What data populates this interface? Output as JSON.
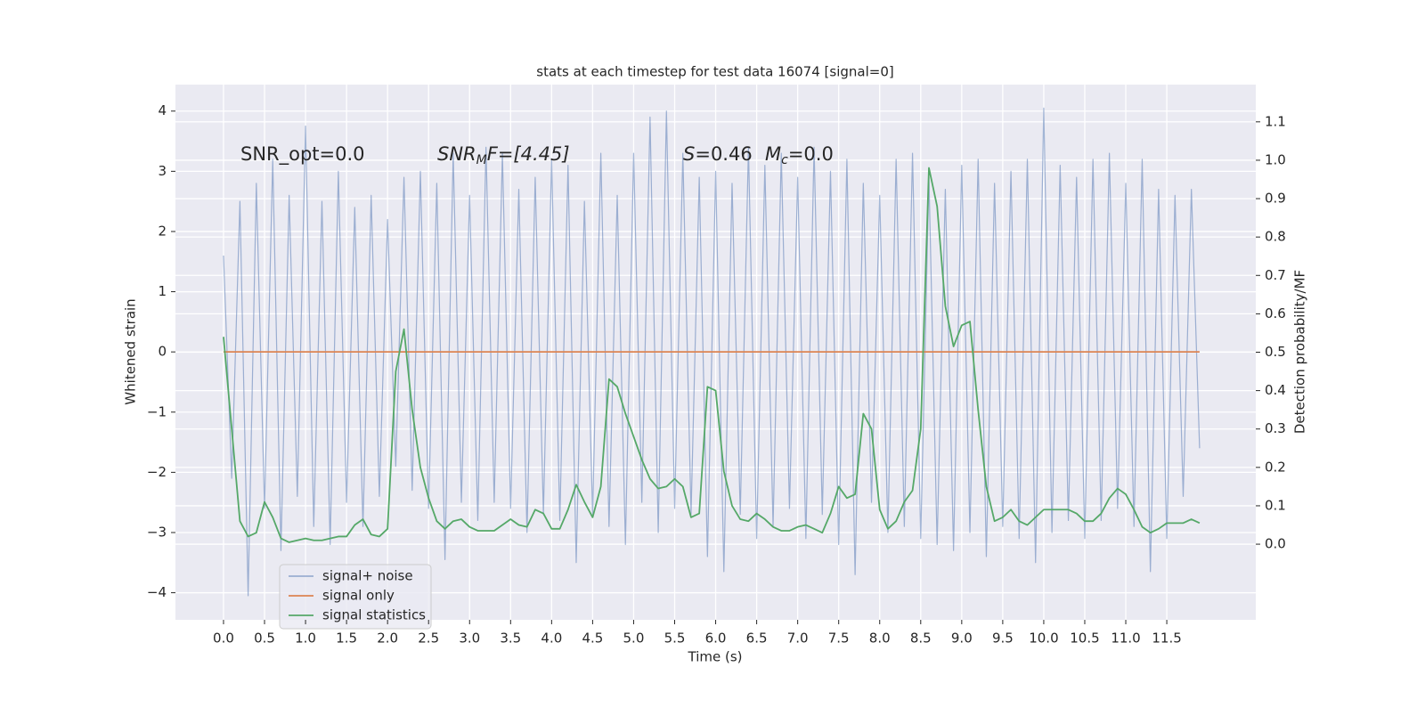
{
  "chart_data": {
    "type": "line",
    "title": "stats at each timestep for test data 16074 [signal=0]",
    "xlabel": "Time (s)",
    "ylabel": "Whitened strain",
    "y2label": "Detection probability/MF",
    "annotations": [
      [
        "SNR_opt=0.0"
      ],
      [
        "SNR",
        "M",
        "F=[4.45]"
      ],
      [
        "S",
        "=0.46"
      ],
      [
        "M",
        "c",
        "=0.0"
      ]
    ],
    "x": [
      0,
      0.1,
      0.2,
      0.3,
      0.4,
      0.5,
      0.6,
      0.7,
      0.8,
      0.9,
      1,
      1.1,
      1.2,
      1.3,
      1.4,
      1.5,
      1.6,
      1.7,
      1.8,
      1.9,
      2,
      2.1,
      2.2,
      2.3,
      2.4,
      2.5,
      2.6,
      2.7,
      2.8,
      2.9,
      3,
      3.1,
      3.2,
      3.3,
      3.4,
      3.5,
      3.6,
      3.7,
      3.8,
      3.9,
      4,
      4.1,
      4.2,
      4.3,
      4.4,
      4.5,
      4.6,
      4.7,
      4.8,
      4.9,
      5,
      5.1,
      5.2,
      5.3,
      5.4,
      5.5,
      5.6,
      5.7,
      5.8,
      5.9,
      6,
      6.1,
      6.2,
      6.3,
      6.4,
      6.5,
      6.6,
      6.7,
      6.8,
      6.9,
      7,
      7.1,
      7.2,
      7.3,
      7.4,
      7.5,
      7.6,
      7.7,
      7.8,
      7.9,
      8,
      8.1,
      8.2,
      8.3,
      8.4,
      8.5,
      8.6,
      8.7,
      8.8,
      8.9,
      9,
      9.1,
      9.2,
      9.3,
      9.4,
      9.5,
      9.6,
      9.7,
      9.8,
      9.9,
      10,
      10.1,
      10.2,
      10.3,
      10.4,
      10.5,
      10.6,
      10.7,
      10.8,
      10.9,
      11,
      11.1,
      11.2,
      11.3,
      11.4,
      11.5,
      11.6,
      11.7,
      11.8,
      11.9
    ],
    "series": [
      {
        "name": "signal+ noise",
        "color": "#4c72b0",
        "values": [
          1.6,
          -2.1,
          2.5,
          -4.05,
          2.8,
          -2.6,
          3.2,
          -3.3,
          2.6,
          -2.4,
          3.75,
          -2.9,
          2.5,
          -3.2,
          3.0,
          -2.5,
          2.4,
          -2.9,
          2.6,
          -2.4,
          2.2,
          -1.9,
          2.9,
          -2.3,
          3.0,
          -2.6,
          2.8,
          -3.45,
          3.3,
          -2.5,
          2.6,
          -2.8,
          3.4,
          -2.5,
          3.3,
          -2.6,
          2.7,
          -3.0,
          2.9,
          -2.7,
          3.2,
          -2.8,
          3.1,
          -3.5,
          2.5,
          -2.7,
          3.3,
          -2.9,
          2.6,
          -3.2,
          3.3,
          -2.5,
          3.9,
          -3.0,
          4.0,
          -2.6,
          3.3,
          -2.7,
          2.9,
          -3.4,
          3.0,
          -3.65,
          2.8,
          -2.7,
          3.4,
          -3.1,
          3.1,
          -2.9,
          3.3,
          -2.6,
          2.9,
          -3.1,
          3.4,
          -2.7,
          3.0,
          -3.2,
          3.2,
          -3.7,
          2.8,
          -2.5,
          2.6,
          -3.0,
          3.2,
          -2.9,
          3.3,
          -3.1,
          2.9,
          -3.2,
          2.7,
          -3.3,
          3.1,
          -3.0,
          3.2,
          -3.4,
          2.8,
          -2.9,
          3.0,
          -3.1,
          3.2,
          -3.5,
          4.05,
          -3.0,
          3.1,
          -2.8,
          2.9,
          -3.1,
          3.2,
          -2.8,
          3.3,
          -2.6,
          2.8,
          -2.9,
          3.2,
          -3.65,
          2.7,
          -3.1,
          2.6,
          -2.4,
          2.7,
          -1.6
        ]
      },
      {
        "name": "signal only",
        "color": "#dd8452",
        "values": [
          0,
          0,
          0,
          0,
          0,
          0,
          0,
          0,
          0,
          0,
          0,
          0,
          0,
          0,
          0,
          0,
          0,
          0,
          0,
          0,
          0,
          0,
          0,
          0,
          0,
          0,
          0,
          0,
          0,
          0,
          0,
          0,
          0,
          0,
          0,
          0,
          0,
          0,
          0,
          0,
          0,
          0,
          0,
          0,
          0,
          0,
          0,
          0,
          0,
          0,
          0,
          0,
          0,
          0,
          0,
          0,
          0,
          0,
          0,
          0,
          0,
          0,
          0,
          0,
          0,
          0,
          0,
          0,
          0,
          0,
          0,
          0,
          0,
          0,
          0,
          0,
          0,
          0,
          0,
          0,
          0,
          0,
          0,
          0,
          0,
          0,
          0,
          0,
          0,
          0,
          0,
          0,
          0,
          0,
          0,
          0,
          0,
          0,
          0,
          0,
          0,
          0,
          0,
          0,
          0,
          0,
          0,
          0,
          0,
          0,
          0,
          0,
          0,
          0,
          0,
          0,
          0,
          0,
          0,
          0
        ]
      },
      {
        "name": "signal statistics",
        "color": "#55a868",
        "axis": "y2",
        "values": [
          0.54,
          0.3,
          0.06,
          0.02,
          0.03,
          0.11,
          0.07,
          0.015,
          0.005,
          0.01,
          0.015,
          0.01,
          0.01,
          0.015,
          0.02,
          0.02,
          0.05,
          0.065,
          0.025,
          0.02,
          0.04,
          0.45,
          0.56,
          0.35,
          0.2,
          0.12,
          0.06,
          0.04,
          0.06,
          0.065,
          0.045,
          0.035,
          0.035,
          0.035,
          0.05,
          0.065,
          0.05,
          0.045,
          0.09,
          0.08,
          0.04,
          0.04,
          0.09,
          0.155,
          0.11,
          0.07,
          0.15,
          0.43,
          0.41,
          0.34,
          0.28,
          0.22,
          0.17,
          0.145,
          0.15,
          0.17,
          0.15,
          0.07,
          0.08,
          0.41,
          0.4,
          0.19,
          0.1,
          0.065,
          0.06,
          0.08,
          0.065,
          0.045,
          0.035,
          0.035,
          0.045,
          0.05,
          0.04,
          0.03,
          0.08,
          0.15,
          0.12,
          0.13,
          0.34,
          0.3,
          0.09,
          0.04,
          0.06,
          0.11,
          0.14,
          0.3,
          0.98,
          0.88,
          0.62,
          0.515,
          0.57,
          0.58,
          0.35,
          0.15,
          0.06,
          0.07,
          0.09,
          0.06,
          0.05,
          0.07,
          0.09,
          0.09,
          0.09,
          0.09,
          0.08,
          0.06,
          0.06,
          0.08,
          0.12,
          0.145,
          0.13,
          0.09,
          0.045,
          0.03,
          0.04,
          0.055,
          0.055,
          0.055,
          0.065,
          0.055
        ]
      }
    ],
    "xlim": [
      -0.586,
      12.585
    ],
    "ylim": [
      -4.45,
      4.44
    ],
    "y2lim": [
      -0.197,
      1.197
    ],
    "xticks": [
      {
        "value": 0,
        "label": "0.0"
      },
      0.5,
      {
        "value": 1,
        "label": "1.0"
      },
      1.5,
      {
        "value": 2,
        "label": "2.0"
      },
      2.5,
      {
        "value": 3,
        "label": "3.0"
      },
      3.5,
      {
        "value": 4,
        "label": "4.0"
      },
      4.5,
      {
        "value": 5,
        "label": "5.0"
      },
      5.5,
      {
        "value": 6,
        "label": "6.0"
      },
      6.5,
      {
        "value": 7,
        "label": "7.0"
      },
      7.5,
      {
        "value": 8,
        "label": "8.0"
      },
      8.5,
      {
        "value": 9,
        "label": "9.0"
      },
      9.5,
      {
        "value": 10,
        "label": "10.0"
      },
      10.5,
      {
        "value": 11,
        "label": "11.0"
      },
      11.5
    ],
    "yticks": [
      {
        "value": -4,
        "label": "−4"
      },
      {
        "value": -3,
        "label": "−3"
      },
      {
        "value": -2,
        "label": "−2"
      },
      {
        "value": -1,
        "label": "−1"
      },
      0,
      1,
      2,
      3,
      4
    ],
    "y2ticks": [
      {
        "value": 0,
        "label": "0.0"
      },
      0.1,
      0.2,
      0.3,
      0.4,
      0.5,
      0.6,
      0.7,
      0.8,
      0.9,
      {
        "value": 1,
        "label": "1.0"
      },
      1.1
    ],
    "grid": true,
    "legend": "lower left"
  }
}
